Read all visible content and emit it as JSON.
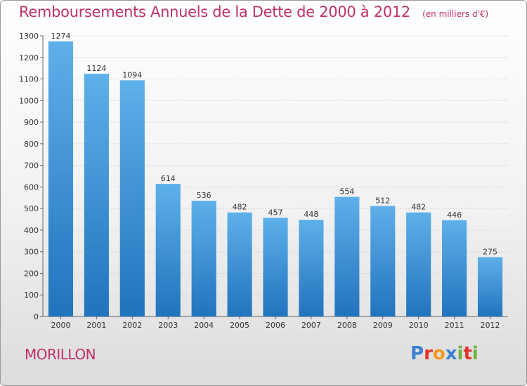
{
  "header": {
    "title": "Remboursements Annuels de la Dette de 2000 à 2012",
    "unit": "(en milliers d'€)"
  },
  "footer": {
    "commune": "MORILLON",
    "logo_text": "Proxiti",
    "logo_colors": [
      "#3a7fd0",
      "#e0342c",
      "#f29a1c",
      "#3a7fd0",
      "#6cb33f",
      "#e0342c",
      "#6cb33f"
    ]
  },
  "colors": {
    "bar_light": "#5eb0ea",
    "bar_dark": "#2173bd",
    "accent": "#c0306a"
  },
  "chart_data": {
    "type": "bar",
    "title": "Remboursements Annuels de la Dette de 2000 à 2012",
    "xlabel": "",
    "ylabel": "",
    "categories": [
      "2000",
      "2001",
      "2002",
      "2003",
      "2004",
      "2005",
      "2006",
      "2007",
      "2008",
      "2009",
      "2010",
      "2011",
      "2012"
    ],
    "values": [
      1274,
      1124,
      1094,
      614,
      536,
      482,
      457,
      448,
      554,
      512,
      482,
      446,
      275
    ],
    "ylim": [
      0,
      1300
    ],
    "yticks": [
      0,
      100,
      200,
      300,
      400,
      500,
      600,
      700,
      800,
      900,
      1000,
      1100,
      1200,
      1300
    ],
    "grid": true,
    "legend": "none"
  }
}
